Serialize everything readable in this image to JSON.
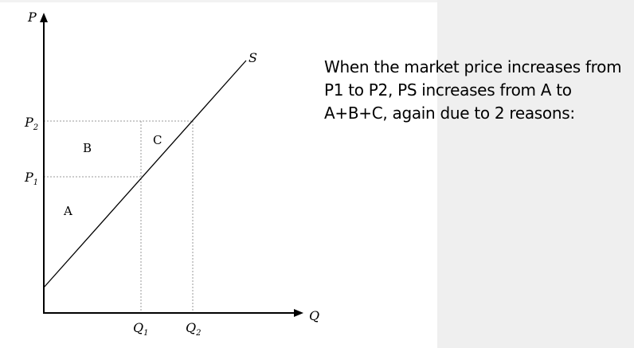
{
  "description_text": "When the market price increases from P1 to P2, PS increases from A to A+B+C, again due to 2 reasons:",
  "diagram": {
    "axis_y_label": "P",
    "axis_x_label": "Q",
    "supply_label": "S",
    "price_labels": [
      {
        "base": "P",
        "sub": "2"
      },
      {
        "base": "P",
        "sub": "1"
      }
    ],
    "quantity_labels": [
      {
        "base": "Q",
        "sub": "1"
      },
      {
        "base": "Q",
        "sub": "2"
      }
    ],
    "regions": {
      "a": "A",
      "b": "B",
      "c": "C"
    }
  }
}
